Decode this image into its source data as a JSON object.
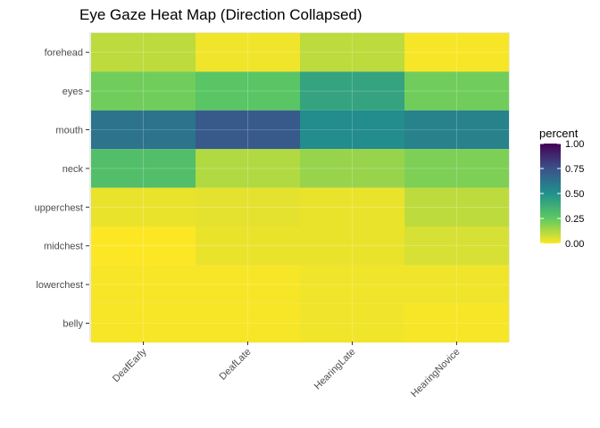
{
  "chart_data": {
    "type": "heatmap",
    "title": "Eye Gaze Heat Map (Direction Collapsed)",
    "xlabel": "",
    "ylabel": "",
    "x_categories": [
      "DeafEarly",
      "DeafLate",
      "HearingLate",
      "HearingNovice"
    ],
    "y_categories": [
      "forehead",
      "eyes",
      "mouth",
      "neck",
      "upperchest",
      "midchest",
      "lowerchest",
      "belly"
    ],
    "values": [
      [
        0.1,
        0.02,
        0.1,
        0.01
      ],
      [
        0.22,
        0.27,
        0.42,
        0.22
      ],
      [
        0.62,
        0.72,
        0.52,
        0.56
      ],
      [
        0.3,
        0.12,
        0.16,
        0.2
      ],
      [
        0.03,
        0.04,
        0.03,
        0.1
      ],
      [
        0.0,
        0.03,
        0.03,
        0.06
      ],
      [
        0.01,
        0.01,
        0.02,
        0.02
      ],
      [
        0.01,
        0.01,
        0.02,
        0.01
      ]
    ],
    "legend": {
      "title": "percent",
      "ticks": [
        {
          "value": 0.0,
          "label": "0.00"
        },
        {
          "value": 0.25,
          "label": "0.25"
        },
        {
          "value": 0.5,
          "label": "0.50"
        },
        {
          "value": 0.75,
          "label": "0.75"
        },
        {
          "value": 1.0,
          "label": "1.00"
        }
      ],
      "range": [
        0,
        1
      ],
      "placement": "right"
    },
    "colormap": "viridis-reversed",
    "color_stops": [
      "#fde725",
      "#5ec962",
      "#21918c",
      "#3b528b",
      "#440154"
    ],
    "panel_background": "#ebebeb",
    "grid": true
  }
}
